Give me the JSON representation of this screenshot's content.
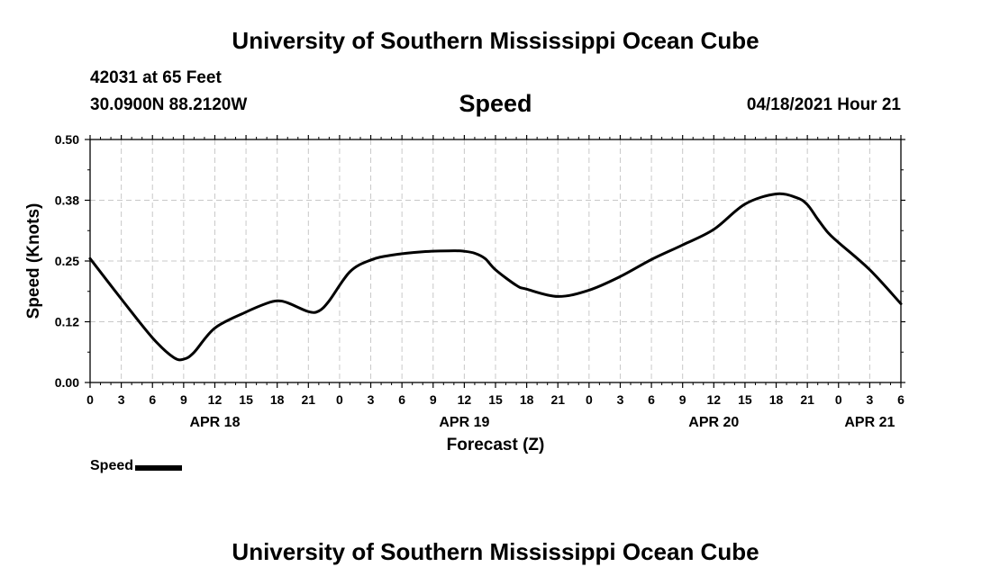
{
  "header": {
    "title": "University of Southern Mississippi Ocean Cube",
    "station": "42031 at 65 Feet",
    "coords": "30.0900N  88.2120W",
    "chart_title": "Speed",
    "datetime": "04/18/2021 Hour 21"
  },
  "footer": {
    "title": "University of Southern Mississippi Ocean Cube"
  },
  "legend": {
    "label": "Speed"
  },
  "colors": {
    "line": "#000000",
    "grid": "#c8c8c8",
    "frame": "#000000"
  },
  "chart_data": {
    "type": "line",
    "title": "Speed",
    "xlabel": "Forecast (Z)",
    "ylabel": "Speed (Knots)",
    "xlim": [
      0,
      78
    ],
    "ylim": [
      0.0,
      0.5
    ],
    "ytick_values": [
      0.0,
      0.125,
      0.25,
      0.375,
      0.5
    ],
    "ytick_labels": [
      "0.00",
      "0.12",
      "0.25",
      "0.38",
      "0.50"
    ],
    "xtick_labels": [
      "0",
      "3",
      "6",
      "9",
      "12",
      "15",
      "18",
      "21",
      "0",
      "3",
      "6",
      "9",
      "12",
      "15",
      "18",
      "21",
      "0",
      "3",
      "6",
      "9",
      "12",
      "15",
      "18",
      "21",
      "0",
      "3",
      "6"
    ],
    "date_labels": [
      {
        "label": "APR 18",
        "hour": 12
      },
      {
        "label": "APR 19",
        "hour": 36
      },
      {
        "label": "APR 20",
        "hour": 60
      },
      {
        "label": "APR 21",
        "hour": 75
      }
    ],
    "grid": true,
    "series": [
      {
        "name": "Speed",
        "x": [
          0,
          3,
          6,
          8,
          9,
          10,
          12,
          15,
          17,
          18,
          19,
          21,
          22,
          23,
          25,
          27,
          29,
          32,
          35,
          36,
          37,
          38,
          39,
          41,
          42,
          45,
          48,
          51,
          54,
          57,
          60,
          63,
          66,
          68,
          69,
          70,
          71,
          72,
          75,
          78
        ],
        "values": [
          0.255,
          0.172,
          0.092,
          0.052,
          0.048,
          0.062,
          0.112,
          0.145,
          0.163,
          0.168,
          0.164,
          0.146,
          0.147,
          0.168,
          0.228,
          0.252,
          0.262,
          0.269,
          0.271,
          0.27,
          0.266,
          0.255,
          0.232,
          0.2,
          0.192,
          0.177,
          0.19,
          0.218,
          0.253,
          0.283,
          0.315,
          0.367,
          0.388,
          0.38,
          0.366,
          0.336,
          0.308,
          0.288,
          0.232,
          0.162
        ]
      }
    ]
  }
}
